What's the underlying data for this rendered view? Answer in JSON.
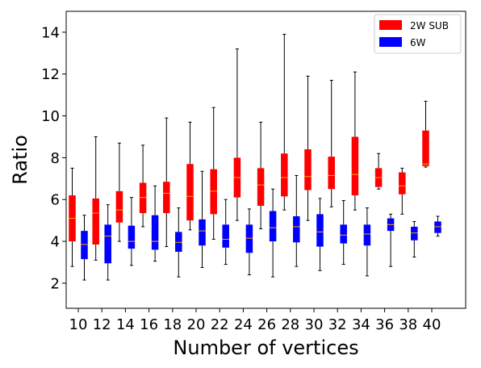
{
  "chart_data": {
    "type": "boxplot",
    "xlabel": "Number of vertices",
    "ylabel": "Ratio",
    "ylim": [
      0.8,
      15.0
    ],
    "y_ticks": [
      2,
      4,
      6,
      8,
      10,
      12,
      14
    ],
    "categories": [
      "10",
      "12",
      "14",
      "16",
      "18",
      "20",
      "22",
      "24",
      "26",
      "28",
      "30",
      "32",
      "34",
      "36",
      "38",
      "40"
    ],
    "legend": {
      "placement": "top-right",
      "entries": [
        "2W SUB",
        "6W"
      ]
    },
    "median_color": "#ffa500",
    "series": [
      {
        "name": "2W SUB",
        "color": "#ff0000",
        "boxes": [
          {
            "whislo": 2.8,
            "q1": 4.0,
            "med": 5.1,
            "q3": 6.2,
            "whishi": 7.5
          },
          {
            "whislo": 3.1,
            "q1": 3.85,
            "med": 5.35,
            "q3": 6.05,
            "whishi": 9.0
          },
          {
            "whislo": 4.0,
            "q1": 4.9,
            "med": 5.5,
            "q3": 6.4,
            "whishi": 8.7
          },
          {
            "whislo": 4.7,
            "q1": 5.35,
            "med": 6.1,
            "q3": 6.8,
            "whishi": 8.6
          },
          {
            "whislo": 3.75,
            "q1": 5.35,
            "med": 6.3,
            "q3": 6.85,
            "whishi": 9.9
          },
          {
            "whislo": 4.55,
            "q1": 5.0,
            "med": 6.15,
            "q3": 7.7,
            "whishi": 9.7
          },
          {
            "whislo": 4.1,
            "q1": 5.3,
            "med": 6.4,
            "q3": 7.45,
            "whishi": 10.4
          },
          {
            "whislo": 5.0,
            "q1": 6.1,
            "med": 7.05,
            "q3": 8.0,
            "whishi": 13.2
          },
          {
            "whislo": 4.6,
            "q1": 5.7,
            "med": 6.7,
            "q3": 7.5,
            "whishi": 9.7
          },
          {
            "whislo": 5.5,
            "q1": 6.15,
            "med": 7.05,
            "q3": 8.2,
            "whishi": 13.9
          },
          {
            "whislo": 5.0,
            "q1": 6.45,
            "med": 7.1,
            "q3": 8.4,
            "whishi": 11.9
          },
          {
            "whislo": 5.65,
            "q1": 6.5,
            "med": 7.15,
            "q3": 8.05,
            "whishi": 11.7
          },
          {
            "whislo": 5.5,
            "q1": 6.2,
            "med": 7.2,
            "q3": 9.0,
            "whishi": 12.1
          },
          {
            "whislo": 6.5,
            "q1": 6.6,
            "med": 7.05,
            "q3": 7.5,
            "whishi": 8.2
          },
          {
            "whislo": 5.3,
            "q1": 6.25,
            "med": 6.65,
            "q3": 7.3,
            "whishi": 7.5
          },
          {
            "whislo": 7.55,
            "q1": 7.6,
            "med": 7.7,
            "q3": 9.3,
            "whishi": 10.7
          }
        ]
      },
      {
        "name": "6W",
        "color": "#0000ff",
        "boxes": [
          {
            "whislo": 2.15,
            "q1": 3.15,
            "med": 3.85,
            "q3": 4.5,
            "whishi": 5.25
          },
          {
            "whislo": 2.15,
            "q1": 2.95,
            "med": 4.25,
            "q3": 4.8,
            "whishi": 5.75
          },
          {
            "whislo": 2.85,
            "q1": 3.65,
            "med": 4.0,
            "q3": 4.75,
            "whishi": 6.1
          },
          {
            "whislo": 3.05,
            "q1": 3.6,
            "med": 4.0,
            "q3": 5.25,
            "whishi": 6.65
          },
          {
            "whislo": 2.3,
            "q1": 3.5,
            "med": 3.95,
            "q3": 4.45,
            "whishi": 5.6
          },
          {
            "whislo": 2.75,
            "q1": 3.8,
            "med": 4.5,
            "q3": 5.05,
            "whishi": 7.35
          },
          {
            "whislo": 2.9,
            "q1": 3.7,
            "med": 4.1,
            "q3": 4.8,
            "whishi": 6.0
          },
          {
            "whislo": 2.4,
            "q1": 3.45,
            "med": 4.15,
            "q3": 4.8,
            "whishi": 5.55
          },
          {
            "whislo": 2.3,
            "q1": 4.0,
            "med": 4.65,
            "q3": 5.45,
            "whishi": 6.5
          },
          {
            "whislo": 2.8,
            "q1": 3.95,
            "med": 4.7,
            "q3": 5.2,
            "whishi": 7.15
          },
          {
            "whislo": 2.6,
            "q1": 3.75,
            "med": 4.45,
            "q3": 5.3,
            "whishi": 6.05
          },
          {
            "whislo": 2.9,
            "q1": 3.9,
            "med": 4.3,
            "q3": 4.8,
            "whishi": 5.95
          },
          {
            "whislo": 2.35,
            "q1": 3.8,
            "med": 4.35,
            "q3": 4.8,
            "whishi": 5.6
          },
          {
            "whislo": 2.8,
            "q1": 4.5,
            "med": 4.8,
            "q3": 5.1,
            "whishi": 5.3
          },
          {
            "whislo": 3.25,
            "q1": 4.05,
            "med": 4.4,
            "q3": 4.7,
            "whishi": 4.95
          },
          {
            "whislo": 4.25,
            "q1": 4.4,
            "med": 4.7,
            "q3": 4.95,
            "whishi": 5.2
          }
        ]
      }
    ]
  }
}
